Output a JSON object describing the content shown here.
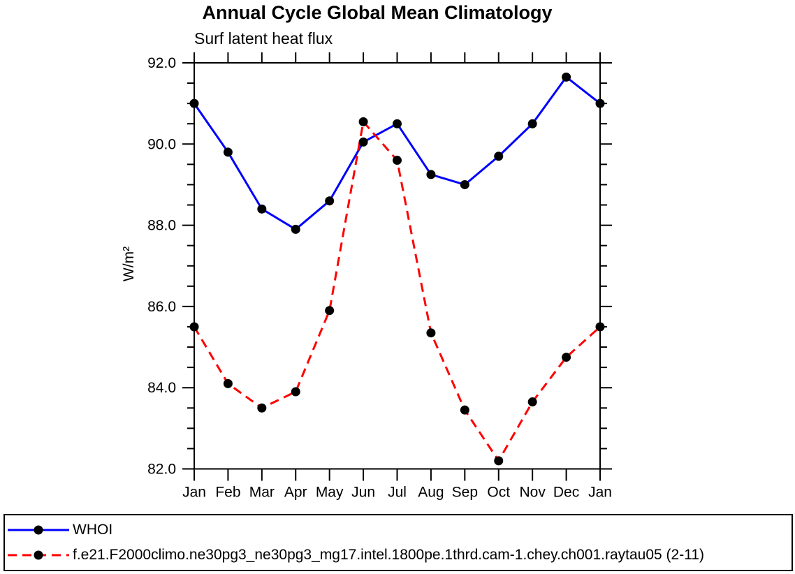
{
  "title": "Annual Cycle Global Mean Climatology",
  "subtitle": "Surf latent heat flux",
  "ylabel": "W/m²",
  "legend": {
    "entries": [
      {
        "label": "WHOI",
        "color": "#0000ff",
        "style": "solid",
        "marker_color": "#000000"
      },
      {
        "label": "f.e21.F2000climo.ne30pg3_ne30pg3_mg17.intel.1800pe.1thrd.cam-1.chey.ch001.raytau05 (2-11)",
        "color": "#ff0000",
        "style": "dashed",
        "marker_color": "#000000"
      }
    ]
  },
  "chart_data": {
    "type": "line",
    "title": "Annual Cycle Global Mean Climatology",
    "subtitle": "Surf latent heat flux",
    "xlabel": "",
    "ylabel": "W/m²",
    "categories": [
      "Jan",
      "Feb",
      "Mar",
      "Apr",
      "May",
      "Jun",
      "Jul",
      "Aug",
      "Sep",
      "Oct",
      "Nov",
      "Dec",
      "Jan"
    ],
    "series": [
      {
        "name": "WHOI",
        "color": "#0000ff",
        "style": "solid",
        "values": [
          91.0,
          89.8,
          88.4,
          87.9,
          88.6,
          90.05,
          90.5,
          89.25,
          89.0,
          89.7,
          90.5,
          91.65,
          91.0
        ]
      },
      {
        "name": "f.e21.F2000climo.ne30pg3_ne30pg3_mg17.intel.1800pe.1thrd.cam-1.chey.ch001.raytau05 (2-11)",
        "color": "#ff0000",
        "style": "dashed",
        "values": [
          85.5,
          84.1,
          83.5,
          83.9,
          85.9,
          90.55,
          89.6,
          85.35,
          83.45,
          82.2,
          83.65,
          84.75,
          85.5
        ]
      }
    ],
    "ylim": [
      82.0,
      92.0
    ],
    "ytick_major": 2.0,
    "ytick_minor": 0.5,
    "ytick_labels": [
      "82.0",
      "84.0",
      "86.0",
      "88.0",
      "90.0",
      "92.0"
    ],
    "grid": false,
    "legend_position": "bottom-box",
    "marker": "filled-circle",
    "marker_color": "#000000",
    "axis_color": "#000000"
  }
}
